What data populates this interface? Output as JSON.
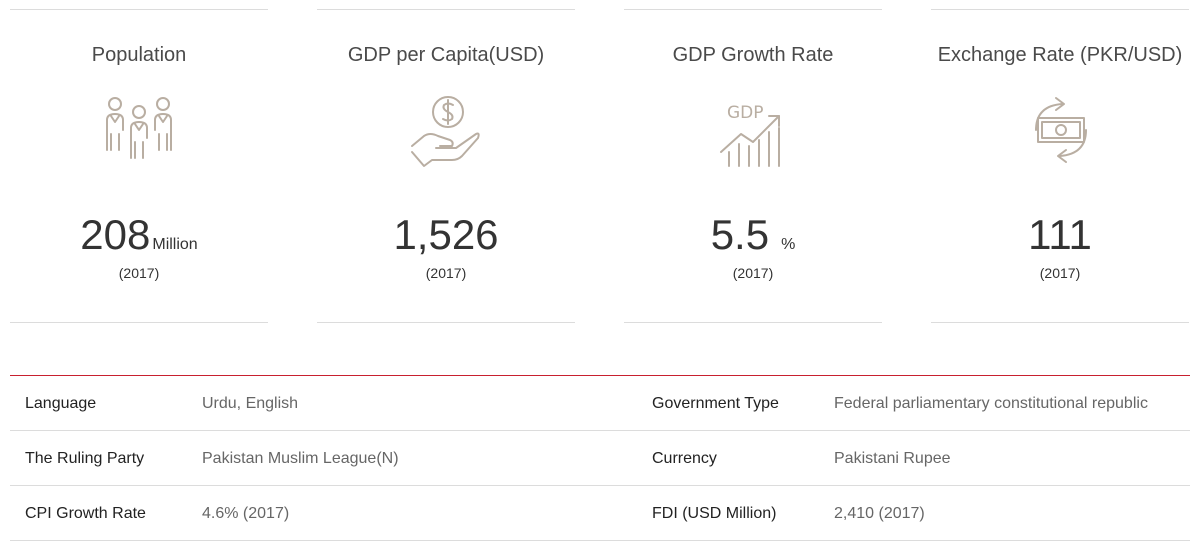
{
  "cards": [
    {
      "title": "Population",
      "icon": "people-icon",
      "value": "208",
      "unit": "Million",
      "year": "(2017)"
    },
    {
      "title": "GDP per Capita(USD)",
      "icon": "money-hand-icon",
      "value": "1,526",
      "unit": "",
      "year": "(2017)"
    },
    {
      "title": "GDP Growth Rate",
      "icon": "gdp-growth-chart-icon",
      "icon_text": "GDP",
      "value": "5.5",
      "unit": "%",
      "year": "(2017)"
    },
    {
      "title": "Exchange Rate (PKR/USD)",
      "icon": "currency-exchange-icon",
      "value": "111",
      "unit": "",
      "year": "(2017)"
    }
  ],
  "info": {
    "rows": [
      {
        "k1": "Language",
        "v1": "Urdu, English",
        "k2": "Government Type",
        "v2": "Federal parliamentary constitutional republic"
      },
      {
        "k1": "The Ruling Party",
        "v1": "Pakistan Muslim League(N)",
        "k2": "Currency",
        "v2": "Pakistani Rupee"
      },
      {
        "k1": "CPI Growth Rate",
        "v1": "4.6% (2017)",
        "k2": "FDI (USD Million)",
        "v2": "2,410 (2017)"
      }
    ]
  },
  "colors": {
    "icon": "#b9aea2",
    "accent_line": "#c8202f",
    "divider": "#dcdcdc"
  }
}
